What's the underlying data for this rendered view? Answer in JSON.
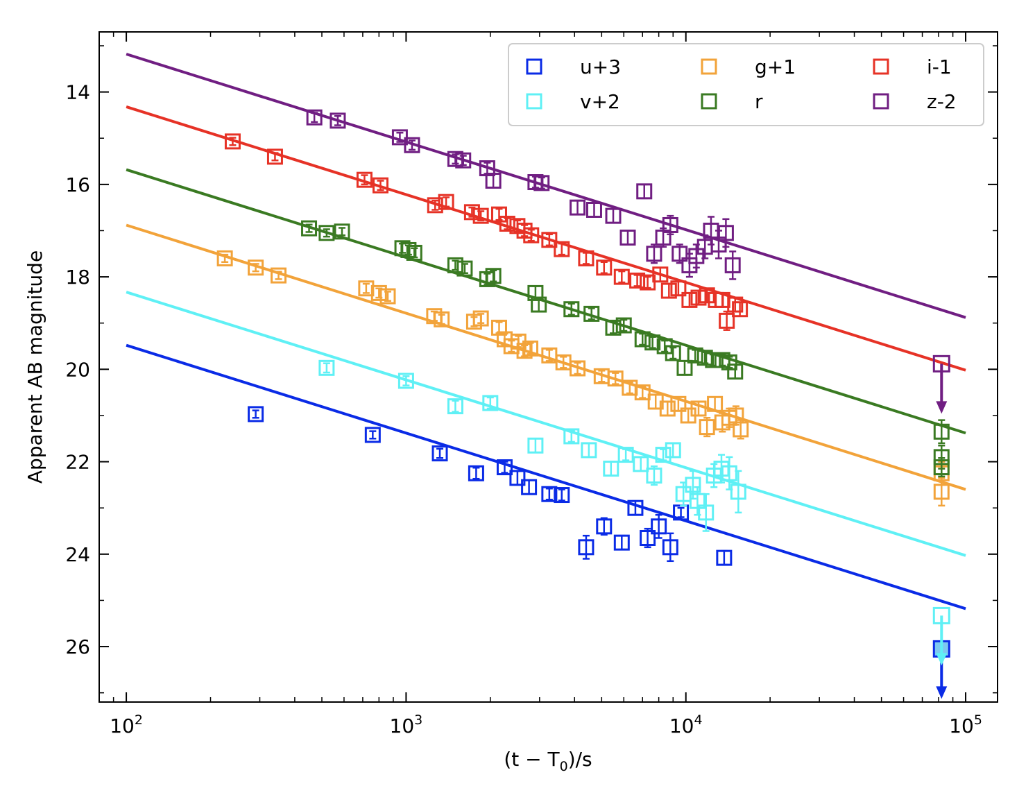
{
  "chart_data": {
    "type": "scatter",
    "title": "",
    "xlabel": "(t − T",
    "xlabel_sub": "0",
    "xlabel_tail": ")/s",
    "ylabel": "Apparent AB magnitude",
    "x_scale": "log",
    "xlim": [
      80,
      130000
    ],
    "ylim": [
      27.2,
      12.7
    ],
    "y_inverted": true,
    "grid": false,
    "legend_position": "top-right",
    "x_ticks": [
      {
        "value": 100,
        "base": "10",
        "exp": "2"
      },
      {
        "value": 1000,
        "base": "10",
        "exp": "3"
      },
      {
        "value": 10000,
        "base": "10",
        "exp": "4"
      },
      {
        "value": 100000,
        "base": "10",
        "exp": "5"
      }
    ],
    "y_ticks": [
      {
        "value": 14,
        "label": "14"
      },
      {
        "value": 16,
        "label": "16"
      },
      {
        "value": 18,
        "label": "18"
      },
      {
        "value": 20,
        "label": "20"
      },
      {
        "value": 22,
        "label": "22"
      },
      {
        "value": 24,
        "label": "24"
      },
      {
        "value": 26,
        "label": "26"
      }
    ],
    "series": [
      {
        "name": "u+3",
        "color": "#0a2be6",
        "fit": [
          [
            100,
            19.48
          ],
          [
            100000,
            25.18
          ]
        ],
        "points": [
          [
            290,
            20.97,
            0.08
          ],
          [
            760,
            21.42,
            0.08
          ],
          [
            1320,
            21.82,
            0.1
          ],
          [
            1780,
            22.25,
            0.12
          ],
          [
            2250,
            22.12,
            0.12
          ],
          [
            2500,
            22.35,
            0.15
          ],
          [
            2750,
            22.55,
            0.15
          ],
          [
            3250,
            22.7,
            0.12
          ],
          [
            3600,
            22.72,
            0.12
          ],
          [
            4400,
            23.85,
            0.25
          ],
          [
            5100,
            23.4,
            0.18
          ],
          [
            5900,
            23.75,
            0.15
          ],
          [
            6600,
            23.0,
            0.15
          ],
          [
            7300,
            23.65,
            0.2
          ],
          [
            8000,
            23.4,
            0.25
          ],
          [
            8800,
            23.85,
            0.3
          ],
          [
            9600,
            23.1,
            0.1
          ],
          [
            13700,
            24.08,
            0.15
          ]
        ],
        "upper_limits": [
          [
            82000,
            26.05
          ]
        ]
      },
      {
        "name": "v+2",
        "color": "#5ff0f5",
        "fit": [
          [
            100,
            18.33
          ],
          [
            100000,
            24.03
          ]
        ],
        "points": [
          [
            520,
            19.97,
            0.1
          ],
          [
            1000,
            20.25,
            0.1
          ],
          [
            1500,
            20.8,
            0.12
          ],
          [
            2000,
            20.73,
            0.12
          ],
          [
            2900,
            21.65,
            0.15
          ],
          [
            3900,
            21.45,
            0.12
          ],
          [
            4500,
            21.75,
            0.15
          ],
          [
            5400,
            22.15,
            0.15
          ],
          [
            6100,
            21.85,
            0.12
          ],
          [
            6900,
            22.05,
            0.15
          ],
          [
            7700,
            22.3,
            0.2
          ],
          [
            8300,
            21.85,
            0.12
          ],
          [
            9000,
            21.75,
            0.15
          ],
          [
            9800,
            22.7,
            0.25
          ],
          [
            10600,
            22.5,
            0.3
          ],
          [
            11000,
            22.85,
            0.3
          ],
          [
            11800,
            23.1,
            0.4
          ],
          [
            12600,
            22.3,
            0.25
          ],
          [
            13400,
            22.15,
            0.3
          ],
          [
            14300,
            22.25,
            0.35
          ],
          [
            15400,
            22.65,
            0.45
          ]
        ],
        "upper_limits": [
          [
            82000,
            25.33
          ]
        ]
      },
      {
        "name": "g+1",
        "color": "#f2a33a",
        "fit": [
          [
            100,
            16.88
          ],
          [
            100000,
            22.6
          ]
        ],
        "points": [
          [
            225,
            17.6,
            0.08
          ],
          [
            290,
            17.8,
            0.08
          ],
          [
            350,
            17.97,
            0.08
          ],
          [
            720,
            18.25,
            0.1
          ],
          [
            800,
            18.35,
            0.1
          ],
          [
            860,
            18.42,
            0.1
          ],
          [
            1260,
            18.85,
            0.1
          ],
          [
            1340,
            18.92,
            0.1
          ],
          [
            1750,
            18.97,
            0.1
          ],
          [
            1850,
            18.9,
            0.1
          ],
          [
            2150,
            19.1,
            0.12
          ],
          [
            2250,
            19.35,
            0.12
          ],
          [
            2380,
            19.5,
            0.12
          ],
          [
            2520,
            19.4,
            0.12
          ],
          [
            2650,
            19.6,
            0.12
          ],
          [
            2780,
            19.55,
            0.12
          ],
          [
            3250,
            19.7,
            0.12
          ],
          [
            3650,
            19.85,
            0.12
          ],
          [
            4100,
            19.98,
            0.12
          ],
          [
            5000,
            20.15,
            0.12
          ],
          [
            5600,
            20.2,
            0.12
          ],
          [
            6300,
            20.4,
            0.12
          ],
          [
            7000,
            20.5,
            0.12
          ],
          [
            7800,
            20.7,
            0.15
          ],
          [
            8600,
            20.85,
            0.15
          ],
          [
            9400,
            20.75,
            0.15
          ],
          [
            10200,
            21.0,
            0.15
          ],
          [
            11100,
            20.85,
            0.15
          ],
          [
            11900,
            21.25,
            0.2
          ],
          [
            12700,
            20.75,
            0.15
          ],
          [
            13500,
            21.15,
            0.2
          ],
          [
            14300,
            21.05,
            0.2
          ],
          [
            15100,
            21.0,
            0.2
          ],
          [
            15700,
            21.3,
            0.2
          ]
        ],
        "extra_points": [
          [
            82000,
            22.25,
            0.25
          ],
          [
            82000,
            22.65,
            0.3
          ]
        ]
      },
      {
        "name": "r",
        "color": "#3a7a22",
        "fit": [
          [
            100,
            15.68
          ],
          [
            100000,
            21.38
          ]
        ],
        "points": [
          [
            450,
            16.95,
            0.08
          ],
          [
            520,
            17.05,
            0.08
          ],
          [
            590,
            17.02,
            0.08
          ],
          [
            970,
            17.38,
            0.1
          ],
          [
            1020,
            17.42,
            0.1
          ],
          [
            1070,
            17.48,
            0.1
          ],
          [
            1500,
            17.75,
            0.1
          ],
          [
            1620,
            17.82,
            0.1
          ],
          [
            1950,
            18.05,
            0.12
          ],
          [
            2050,
            17.98,
            0.12
          ],
          [
            2900,
            18.35,
            0.15
          ],
          [
            2980,
            18.6,
            0.15
          ],
          [
            3900,
            18.7,
            0.12
          ],
          [
            4600,
            18.8,
            0.12
          ],
          [
            5500,
            19.1,
            0.12
          ],
          [
            6000,
            19.05,
            0.12
          ],
          [
            7000,
            19.35,
            0.12
          ],
          [
            7600,
            19.42,
            0.12
          ],
          [
            8400,
            19.5,
            0.12
          ],
          [
            9000,
            19.65,
            0.12
          ],
          [
            9900,
            19.97,
            0.15
          ],
          [
            10800,
            19.7,
            0.12
          ],
          [
            11700,
            19.75,
            0.12
          ],
          [
            12500,
            19.8,
            0.12
          ],
          [
            13500,
            19.8,
            0.12
          ],
          [
            14300,
            19.85,
            0.12
          ],
          [
            15000,
            20.05,
            0.15
          ]
        ],
        "extra_points": [
          [
            82000,
            21.35,
            0.25
          ],
          [
            82000,
            21.9,
            0.25
          ],
          [
            82000,
            22.12,
            0.2
          ]
        ]
      },
      {
        "name": "i-1",
        "color": "#e63226",
        "fit": [
          [
            100,
            14.32
          ],
          [
            100000,
            20.02
          ]
        ],
        "points": [
          [
            240,
            15.07,
            0.08
          ],
          [
            340,
            15.4,
            0.08
          ],
          [
            710,
            15.9,
            0.1
          ],
          [
            810,
            16.02,
            0.1
          ],
          [
            1270,
            16.45,
            0.1
          ],
          [
            1390,
            16.38,
            0.1
          ],
          [
            1720,
            16.6,
            0.1
          ],
          [
            1850,
            16.68,
            0.1
          ],
          [
            2150,
            16.65,
            0.12
          ],
          [
            2300,
            16.85,
            0.12
          ],
          [
            2500,
            16.9,
            0.12
          ],
          [
            2650,
            17.0,
            0.12
          ],
          [
            2800,
            17.1,
            0.12
          ],
          [
            3250,
            17.2,
            0.12
          ],
          [
            3600,
            17.4,
            0.12
          ],
          [
            4400,
            17.6,
            0.12
          ],
          [
            5100,
            17.8,
            0.12
          ],
          [
            5900,
            18.0,
            0.12
          ],
          [
            6700,
            18.08,
            0.12
          ],
          [
            7300,
            18.12,
            0.12
          ],
          [
            8100,
            17.95,
            0.15
          ],
          [
            8700,
            18.3,
            0.15
          ],
          [
            9400,
            18.25,
            0.15
          ],
          [
            10300,
            18.5,
            0.15
          ],
          [
            11100,
            18.45,
            0.15
          ],
          [
            11900,
            18.4,
            0.15
          ],
          [
            12800,
            18.5,
            0.15
          ],
          [
            13500,
            18.5,
            0.15
          ],
          [
            14000,
            18.95,
            0.2
          ],
          [
            15000,
            18.6,
            0.15
          ],
          [
            15600,
            18.7,
            0.15
          ]
        ]
      },
      {
        "name": "z-2",
        "color": "#701e82",
        "fit": [
          [
            100,
            13.18
          ],
          [
            100000,
            18.88
          ]
        ],
        "points": [
          [
            470,
            14.55,
            0.1
          ],
          [
            570,
            14.62,
            0.1
          ],
          [
            950,
            14.98,
            0.1
          ],
          [
            1050,
            15.15,
            0.1
          ],
          [
            1500,
            15.45,
            0.1
          ],
          [
            1600,
            15.48,
            0.1
          ],
          [
            1950,
            15.65,
            0.12
          ],
          [
            2050,
            15.92,
            0.15
          ],
          [
            2900,
            15.95,
            0.12
          ],
          [
            3050,
            15.97,
            0.12
          ],
          [
            4100,
            16.5,
            0.15
          ],
          [
            4700,
            16.55,
            0.15
          ],
          [
            5500,
            16.68,
            0.15
          ],
          [
            6200,
            17.15,
            0.15
          ],
          [
            7100,
            16.15,
            0.15
          ],
          [
            7700,
            17.5,
            0.2
          ],
          [
            8300,
            17.15,
            0.2
          ],
          [
            8800,
            16.88,
            0.2
          ],
          [
            9500,
            17.5,
            0.2
          ],
          [
            10300,
            17.75,
            0.25
          ],
          [
            10900,
            17.55,
            0.25
          ],
          [
            11700,
            17.35,
            0.25
          ],
          [
            12300,
            17.0,
            0.3
          ],
          [
            13100,
            17.3,
            0.3
          ],
          [
            13900,
            17.05,
            0.3
          ],
          [
            14700,
            17.75,
            0.3
          ]
        ],
        "upper_limits": [
          [
            82000,
            19.88
          ]
        ]
      }
    ],
    "legend": [
      {
        "label": "u+3",
        "color": "#0a2be6"
      },
      {
        "label": "g+1",
        "color": "#f2a33a"
      },
      {
        "label": "i-1",
        "color": "#e63226"
      },
      {
        "label": "v+2",
        "color": "#5ff0f5"
      },
      {
        "label": "r",
        "color": "#3a7a22"
      },
      {
        "label": "z-2",
        "color": "#701e82"
      }
    ]
  }
}
